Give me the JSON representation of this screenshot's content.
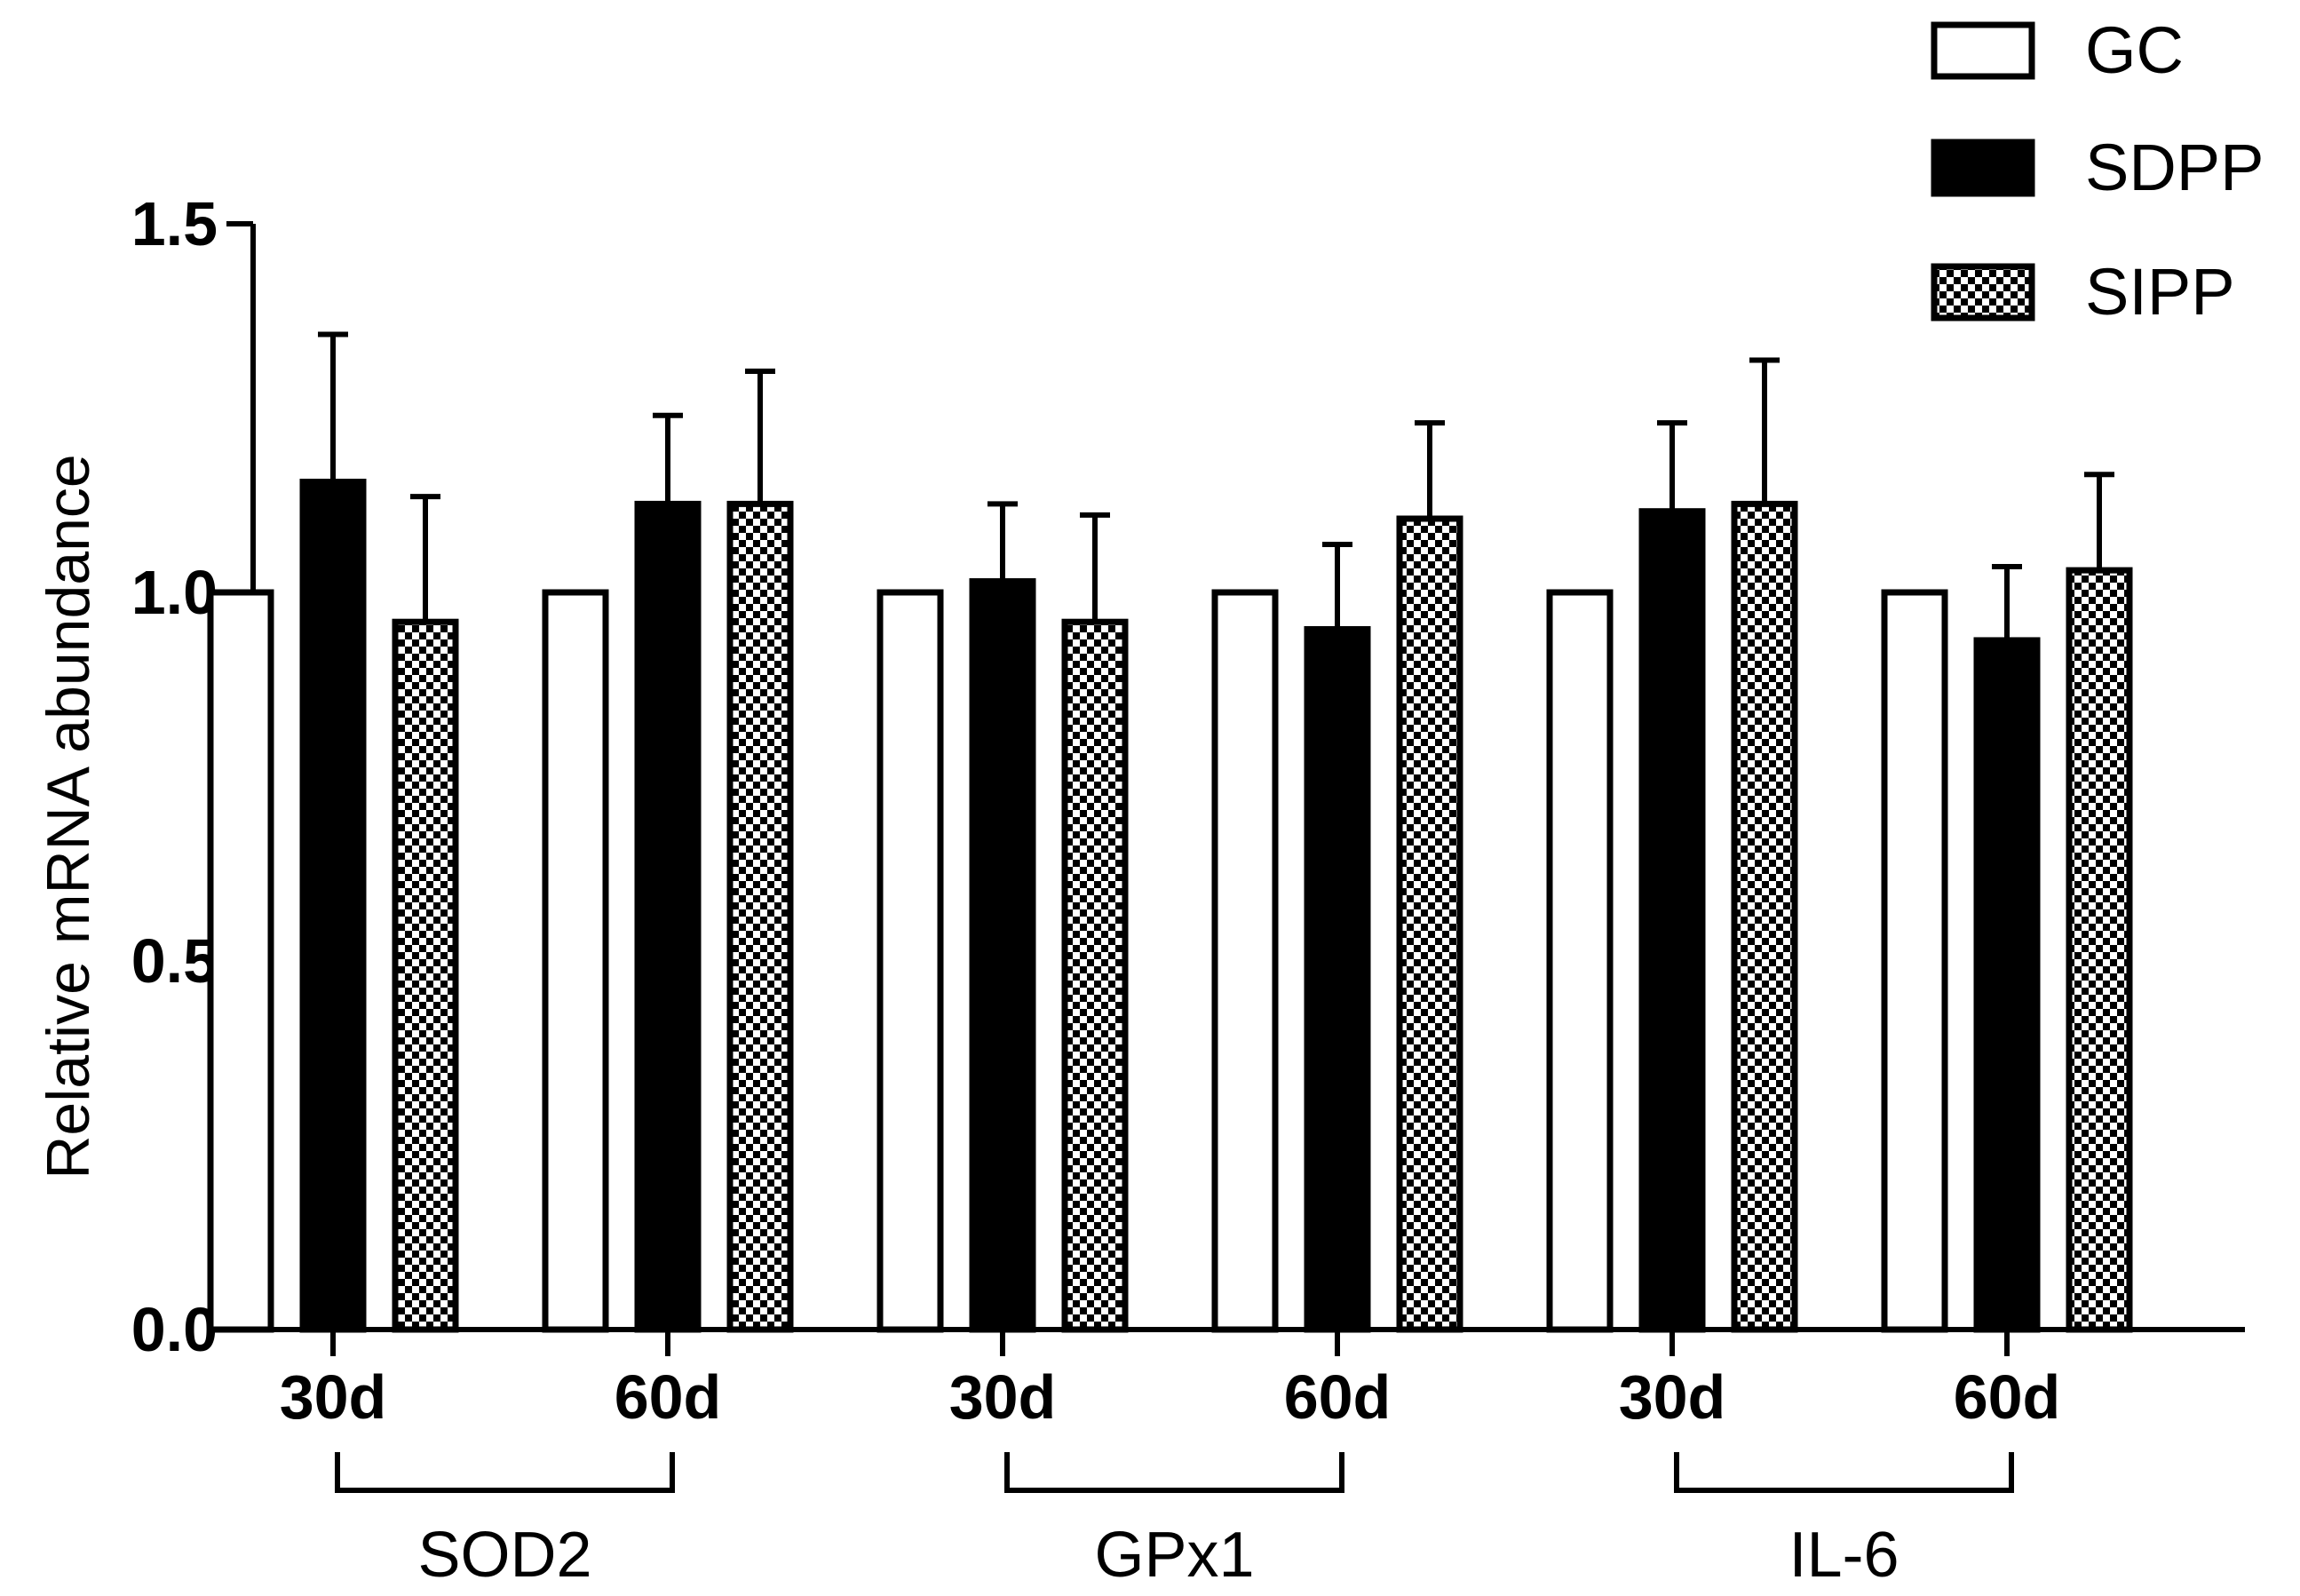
{
  "chart_data": {
    "type": "bar",
    "ylabel": "Relative mRNA abundance",
    "ylim": [
      0,
      1.5
    ],
    "yticks": [
      "0.0",
      "0.5",
      "1.0",
      "1.5"
    ],
    "ytick_values": [
      0,
      0.5,
      1.0,
      1.5
    ],
    "legend_position": "top-right",
    "series": [
      {
        "name": "GC",
        "pattern": "open",
        "fill": "#ffffff"
      },
      {
        "name": "SDPP",
        "pattern": "solid",
        "fill": "#000000"
      },
      {
        "name": "SIPP",
        "pattern": "checker",
        "fill": "#000000"
      }
    ],
    "groups": [
      {
        "gene": "SOD2",
        "timepoints": [
          {
            "label": "30d",
            "values": [
              1.0,
              1.15,
              0.96
            ],
            "errors": [
              0,
              0.2,
              0.17
            ]
          },
          {
            "label": "60d",
            "values": [
              1.0,
              1.12,
              1.12
            ],
            "errors": [
              0,
              0.12,
              0.18
            ]
          }
        ]
      },
      {
        "gene": "GPx1",
        "timepoints": [
          {
            "label": "30d",
            "values": [
              1.0,
              1.015,
              0.96
            ],
            "errors": [
              0,
              0.105,
              0.145
            ]
          },
          {
            "label": "60d",
            "values": [
              1.0,
              0.95,
              1.1
            ],
            "errors": [
              0,
              0.115,
              0.13
            ]
          }
        ]
      },
      {
        "gene": "IL-6",
        "timepoints": [
          {
            "label": "30d",
            "values": [
              1.0,
              1.11,
              1.12
            ],
            "errors": [
              0,
              0.12,
              0.195
            ]
          },
          {
            "label": "60d",
            "values": [
              1.0,
              0.935,
              1.03
            ],
            "errors": [
              0,
              0.1,
              0.13
            ]
          }
        ]
      }
    ]
  }
}
